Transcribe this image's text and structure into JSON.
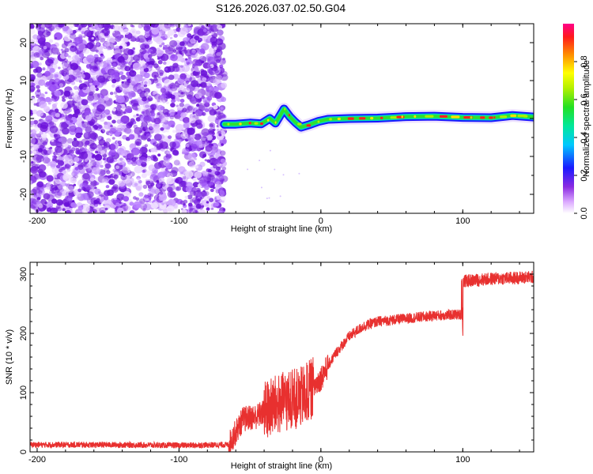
{
  "page_title": "S126.2026.037.02.50.G04",
  "chart_data": [
    {
      "type": "heatmap",
      "title": "S126.2026.037.02.50.G04",
      "xlabel": "Height of straight line (km)",
      "ylabel": "Frequency (Hz)",
      "xlim": [
        -205,
        150
      ],
      "ylim": [
        -25,
        25
      ],
      "x_ticks": [
        -200,
        -100,
        0,
        100
      ],
      "y_ticks": [
        -20,
        -10,
        0,
        10,
        20
      ],
      "noise_region_x": [
        -205,
        -68
      ],
      "trace_points": [
        {
          "x": -68,
          "y": -1.5
        },
        {
          "x": -60,
          "y": -1.5
        },
        {
          "x": -50,
          "y": -1.2
        },
        {
          "x": -42,
          "y": -1.4
        },
        {
          "x": -36,
          "y": 0.0
        },
        {
          "x": -32,
          "y": -1.2
        },
        {
          "x": -26,
          "y": 2.5
        },
        {
          "x": -22,
          "y": 0.5
        },
        {
          "x": -18,
          "y": -1.0
        },
        {
          "x": -14,
          "y": -2.3
        },
        {
          "x": -8,
          "y": -1.6
        },
        {
          "x": -2,
          "y": -0.8
        },
        {
          "x": 5,
          "y": -0.2
        },
        {
          "x": 20,
          "y": 0.0
        },
        {
          "x": 40,
          "y": 0.1
        },
        {
          "x": 60,
          "y": 0.5
        },
        {
          "x": 80,
          "y": 0.6
        },
        {
          "x": 100,
          "y": 0.3
        },
        {
          "x": 120,
          "y": 0.2
        },
        {
          "x": 135,
          "y": 0.8
        },
        {
          "x": 150,
          "y": 0.4
        }
      ],
      "colorbar": {
        "label": "Normalized spectral amplitude",
        "range": [
          0.0,
          1.0
        ],
        "ticks": [
          "0.0",
          "0.2",
          "0.4",
          "0.6",
          "0.8"
        ],
        "colormap": "rainbow (white-violet-blue-cyan-green-yellow-red-magenta)"
      }
    },
    {
      "type": "line",
      "xlabel": "Height of straight line (km)",
      "ylabel": "SNR (10 * v/v)",
      "xlim": [
        -205,
        150
      ],
      "ylim": [
        0,
        320
      ],
      "x_ticks": [
        -200,
        -100,
        0,
        100
      ],
      "y_ticks": [
        0,
        100,
        200,
        300
      ],
      "series": [
        {
          "name": "SNR",
          "color": "#e8302f",
          "points": [
            {
              "x": -205,
              "y": 12
            },
            {
              "x": -150,
              "y": 12
            },
            {
              "x": -100,
              "y": 11
            },
            {
              "x": -65,
              "y": 12
            },
            {
              "x": -55,
              "y": 55
            },
            {
              "x": -45,
              "y": 60
            },
            {
              "x": -35,
              "y": 75
            },
            {
              "x": -25,
              "y": 85
            },
            {
              "x": -15,
              "y": 90
            },
            {
              "x": -5,
              "y": 110
            },
            {
              "x": 0,
              "y": 125
            },
            {
              "x": 10,
              "y": 165
            },
            {
              "x": 20,
              "y": 195
            },
            {
              "x": 30,
              "y": 212
            },
            {
              "x": 40,
              "y": 220
            },
            {
              "x": 60,
              "y": 225
            },
            {
              "x": 80,
              "y": 230
            },
            {
              "x": 99,
              "y": 232
            },
            {
              "x": 100,
              "y": 288
            },
            {
              "x": 120,
              "y": 292
            },
            {
              "x": 150,
              "y": 295
            }
          ]
        }
      ]
    }
  ]
}
